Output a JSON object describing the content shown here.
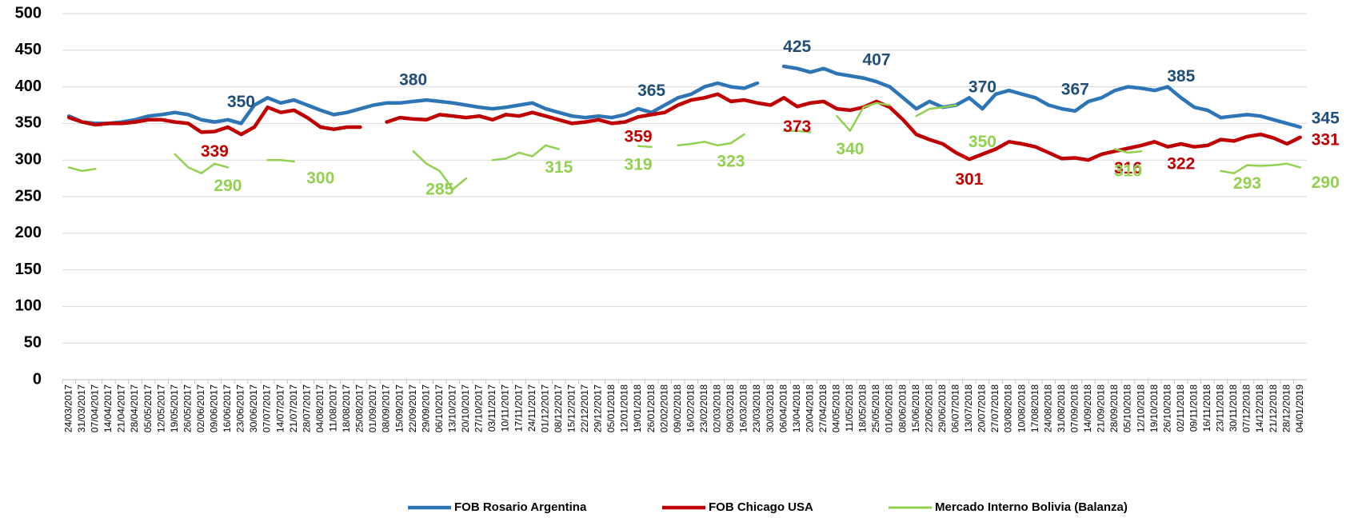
{
  "chart_data": {
    "type": "line",
    "categories": [
      "24/03/2017",
      "31/03/2017",
      "07/04/2017",
      "14/04/2017",
      "21/04/2017",
      "28/04/2017",
      "05/05/2017",
      "12/05/2017",
      "19/05/2017",
      "26/05/2017",
      "02/06/2017",
      "09/06/2017",
      "16/06/2017",
      "23/06/2017",
      "30/06/2017",
      "07/07/2017",
      "14/07/2017",
      "21/07/2017",
      "28/07/2017",
      "04/08/2017",
      "11/08/2017",
      "18/08/2017",
      "25/08/2017",
      "01/09/2017",
      "08/09/2017",
      "15/09/2017",
      "22/09/2017",
      "29/09/2017",
      "06/10/2017",
      "13/10/2017",
      "20/10/2017",
      "27/10/2017",
      "03/11/2017",
      "10/11/2017",
      "17/11/2017",
      "24/11/2017",
      "01/12/2017",
      "08/12/2017",
      "15/12/2017",
      "22/12/2017",
      "29/12/2017",
      "05/01/2018",
      "12/01/2018",
      "19/01/2018",
      "26/01/2018",
      "02/02/2018",
      "09/02/2018",
      "16/02/2018",
      "23/02/2018",
      "02/03/2018",
      "09/03/2018",
      "16/03/2018",
      "23/03/2018",
      "30/03/2018",
      "06/04/2018",
      "13/04/2018",
      "20/04/2018",
      "27/04/2018",
      "04/05/2018",
      "11/05/2018",
      "18/05/2018",
      "25/05/2018",
      "01/06/2018",
      "08/06/2018",
      "15/06/2018",
      "22/06/2018",
      "29/06/2018",
      "06/07/2018",
      "13/07/2018",
      "20/07/2018",
      "27/07/2018",
      "03/08/2018",
      "10/08/2018",
      "17/08/2018",
      "24/08/2018",
      "31/08/2018",
      "07/09/2018",
      "14/09/2018",
      "21/09/2018",
      "28/09/2018",
      "05/10/2018",
      "12/10/2018",
      "19/10/2018",
      "26/10/2018",
      "02/11/2018",
      "09/11/2018",
      "16/11/2018",
      "23/11/2018",
      "30/11/2018",
      "07/12/2018",
      "14/12/2018",
      "21/12/2018",
      "28/12/2018",
      "04/01/2019"
    ],
    "series": [
      {
        "name": "FOB Rosario Argentina",
        "color": "#2e75b6",
        "label_color": "#1f4e79",
        "values": [
          360,
          352,
          350,
          350,
          352,
          355,
          360,
          362,
          365,
          362,
          355,
          352,
          355,
          350,
          375,
          385,
          378,
          382,
          375,
          368,
          362,
          365,
          370,
          375,
          378,
          378,
          380,
          382,
          380,
          378,
          375,
          372,
          370,
          372,
          375,
          378,
          370,
          365,
          360,
          358,
          360,
          358,
          362,
          370,
          365,
          375,
          385,
          390,
          400,
          405,
          400,
          398,
          405,
          null,
          428,
          425,
          420,
          425,
          418,
          415,
          412,
          407,
          400,
          385,
          370,
          380,
          372,
          375,
          385,
          370,
          390,
          395,
          390,
          385,
          375,
          370,
          367,
          380,
          385,
          395,
          400,
          398,
          395,
          400,
          385,
          372,
          368,
          358,
          360,
          362,
          360,
          355,
          350,
          345
        ],
        "value_labels": [
          null,
          null,
          null,
          null,
          null,
          null,
          null,
          null,
          null,
          null,
          null,
          null,
          null,
          "350",
          null,
          null,
          null,
          null,
          null,
          null,
          null,
          null,
          null,
          null,
          null,
          null,
          "380",
          null,
          null,
          null,
          null,
          null,
          null,
          null,
          null,
          null,
          null,
          null,
          null,
          null,
          null,
          null,
          null,
          null,
          "365",
          null,
          null,
          null,
          null,
          null,
          null,
          null,
          null,
          null,
          null,
          "425",
          null,
          null,
          null,
          null,
          null,
          "407",
          null,
          null,
          null,
          null,
          null,
          null,
          null,
          "370",
          null,
          null,
          null,
          null,
          null,
          null,
          "367",
          null,
          null,
          null,
          null,
          null,
          null,
          null,
          "385",
          null,
          null,
          null,
          null,
          null,
          null,
          null,
          null,
          "345"
        ]
      },
      {
        "name": "FOB Chicago USA",
        "color": "#c00000",
        "label_color": "#c00000",
        "values": [
          358,
          352,
          348,
          350,
          350,
          352,
          355,
          355,
          352,
          350,
          338,
          339,
          345,
          335,
          345,
          372,
          365,
          368,
          358,
          345,
          342,
          345,
          345,
          null,
          352,
          358,
          356,
          355,
          362,
          360,
          358,
          360,
          355,
          362,
          360,
          365,
          360,
          355,
          350,
          352,
          355,
          350,
          352,
          359,
          362,
          365,
          375,
          382,
          385,
          390,
          380,
          382,
          378,
          375,
          385,
          373,
          378,
          380,
          370,
          368,
          372,
          380,
          372,
          355,
          335,
          328,
          322,
          310,
          301,
          308,
          315,
          325,
          322,
          318,
          310,
          302,
          303,
          300,
          308,
          312,
          316,
          320,
          325,
          318,
          322,
          318,
          320,
          328,
          326,
          332,
          335,
          330,
          322,
          331
        ],
        "value_labels": [
          null,
          null,
          null,
          null,
          null,
          null,
          null,
          null,
          null,
          null,
          null,
          "339",
          null,
          null,
          null,
          null,
          null,
          null,
          null,
          null,
          null,
          null,
          null,
          null,
          null,
          null,
          null,
          null,
          null,
          null,
          null,
          null,
          null,
          null,
          null,
          null,
          null,
          null,
          null,
          null,
          null,
          null,
          null,
          "359",
          null,
          null,
          null,
          null,
          null,
          null,
          null,
          null,
          null,
          null,
          null,
          "373",
          null,
          null,
          null,
          null,
          null,
          null,
          null,
          null,
          null,
          null,
          null,
          null,
          "301",
          null,
          null,
          null,
          null,
          null,
          null,
          null,
          null,
          null,
          null,
          null,
          "316",
          null,
          null,
          null,
          "322",
          null,
          null,
          null,
          null,
          null,
          null,
          null,
          null,
          "331"
        ]
      },
      {
        "name": "Mercado Interno Bolivia (Balanza)",
        "color": "#92d050",
        "label_color": "#92d050",
        "values": [
          290,
          285,
          288,
          null,
          285,
          null,
          275,
          null,
          308,
          290,
          282,
          295,
          290,
          null,
          null,
          300,
          300,
          298,
          null,
          300,
          null,
          null,
          null,
          null,
          null,
          null,
          312,
          295,
          285,
          260,
          275,
          null,
          300,
          302,
          310,
          305,
          320,
          315,
          null,
          null,
          null,
          null,
          null,
          319,
          318,
          null,
          320,
          322,
          325,
          320,
          323,
          335,
          null,
          null,
          340,
          340,
          338,
          null,
          360,
          340,
          372,
          378,
          375,
          null,
          360,
          370,
          372,
          375,
          null,
          350,
          null,
          null,
          null,
          null,
          null,
          null,
          null,
          null,
          null,
          315,
          310,
          312,
          null,
          null,
          null,
          null,
          null,
          285,
          282,
          293,
          292,
          293,
          295,
          290
        ],
        "value_labels": [
          null,
          null,
          null,
          null,
          null,
          null,
          null,
          null,
          null,
          null,
          null,
          null,
          "290",
          null,
          null,
          null,
          null,
          null,
          null,
          "300",
          null,
          null,
          null,
          null,
          null,
          null,
          null,
          null,
          "285",
          null,
          null,
          null,
          null,
          null,
          null,
          null,
          null,
          "315",
          null,
          null,
          null,
          null,
          null,
          "319",
          null,
          null,
          null,
          null,
          null,
          null,
          "323",
          null,
          null,
          null,
          null,
          null,
          null,
          null,
          null,
          "340",
          null,
          null,
          null,
          null,
          null,
          null,
          null,
          null,
          null,
          "350",
          null,
          null,
          null,
          null,
          null,
          null,
          null,
          null,
          null,
          null,
          "310",
          null,
          null,
          null,
          null,
          null,
          null,
          null,
          null,
          "293",
          null,
          null,
          null,
          "290"
        ]
      }
    ],
    "ylim": [
      0,
      500
    ],
    "yticks": [
      0,
      50,
      100,
      150,
      200,
      250,
      300,
      350,
      400,
      450,
      500
    ],
    "grid": true,
    "legend": "bottom"
  }
}
